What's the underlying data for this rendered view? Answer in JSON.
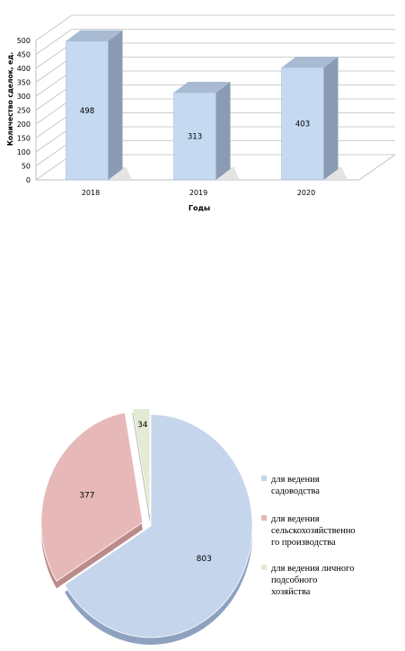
{
  "chart_data": [
    {
      "type": "bar",
      "categories": [
        "2018",
        "2019",
        "2020"
      ],
      "values": [
        498,
        313,
        403
      ],
      "xlabel": "Годы",
      "ylabel": "Количество сделок, ед.",
      "ylim": [
        0,
        500
      ],
      "yticks": [
        "0",
        "50",
        "100",
        "150",
        "200",
        "250",
        "300",
        "350",
        "400",
        "450",
        "500"
      ],
      "data_labels": [
        "498",
        "313",
        "403"
      ],
      "grid": true,
      "colors": {
        "bar_front": "#c5d9f1",
        "bar_side": "#8a9bb3",
        "bar_top": "#a9bbd3",
        "grid": "#bfbfbf"
      }
    },
    {
      "type": "pie",
      "labels": [
        "для ведения садоводства",
        "для ведения сельскохозяйственного производства",
        "для ведения личного подсобного хозяйства"
      ],
      "legend_lines": [
        [
          "для ведения",
          "садоводства"
        ],
        [
          "для ведения",
          "сельскохозяйственно",
          "го производства"
        ],
        [
          "для ведения личного",
          "подсобного",
          "хозяйства"
        ]
      ],
      "values": [
        803,
        377,
        34
      ],
      "data_labels": [
        "803",
        "377",
        "34"
      ],
      "legend_position": "right",
      "colors": [
        "#c5d5ec",
        "#e6b9b8",
        "#e3ead5"
      ],
      "side_colors": [
        "#8ea2c0",
        "#bb8b8a",
        "#aab49b"
      ]
    }
  ]
}
